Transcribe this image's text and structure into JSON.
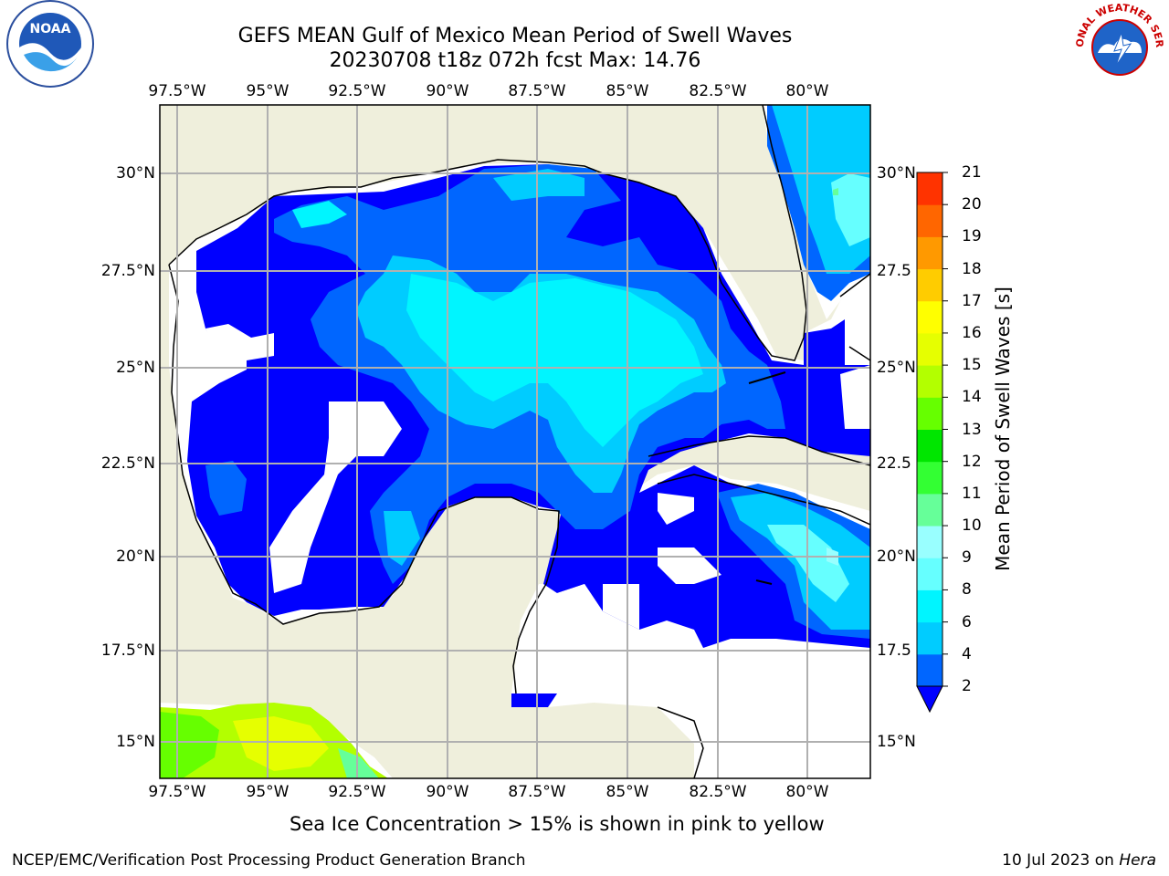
{
  "title": {
    "line1": "GEFS MEAN Gulf of Mexico Mean Period of Swell Waves",
    "line2": "20230708 t18z 072h fcst   Max: 14.76"
  },
  "axes": {
    "lon_ticks": [
      "97.5°W",
      "95°W",
      "92.5°W",
      "90°W",
      "87.5°W",
      "85°W",
      "82.5°W",
      "80°W"
    ],
    "lat_ticks_left": [
      "30°N",
      "27.5°N",
      "25°N",
      "22.5°N",
      "20°N",
      "17.5°N",
      "15°N"
    ],
    "lat_ticks_right": [
      "30°N",
      "27.5",
      "25°N",
      "22.5",
      "20°N",
      "17.5",
      "15°N"
    ]
  },
  "colorbar": {
    "label": "Mean Period of Swell Waves [s]",
    "ticks": [
      "2",
      "4",
      "6",
      "8",
      "9",
      "10",
      "11",
      "12",
      "13",
      "14",
      "15",
      "16",
      "17",
      "18",
      "19",
      "20",
      "21"
    ],
    "colors": [
      "#0066ff",
      "#00ccff",
      "#00f5ff",
      "#66ffff",
      "#99ffff",
      "#66ff99",
      "#33ff33",
      "#00e600",
      "#66ff00",
      "#b3ff00",
      "#e6ff00",
      "#ffff00",
      "#ffcc00",
      "#ff9900",
      "#ff6600",
      "#ff3300",
      "#ff0000"
    ],
    "under_color": "#0000ff"
  },
  "map": {
    "land_color": "#efefdc",
    "grid_color": "#b0b0b0"
  },
  "ice_note": "Sea Ice Concentration > 15% is shown in pink to yellow",
  "footer": {
    "left": "NCEP/EMC/Verification Post Processing Product Generation Branch",
    "right_date": "10 Jul 2023 on ",
    "right_host": "Hera"
  },
  "logos": {
    "left": "noaa-logo",
    "right": "nws-logo",
    "left_text": "NOAA",
    "right_text": "NATIONAL WEATHER SERVICE"
  }
}
